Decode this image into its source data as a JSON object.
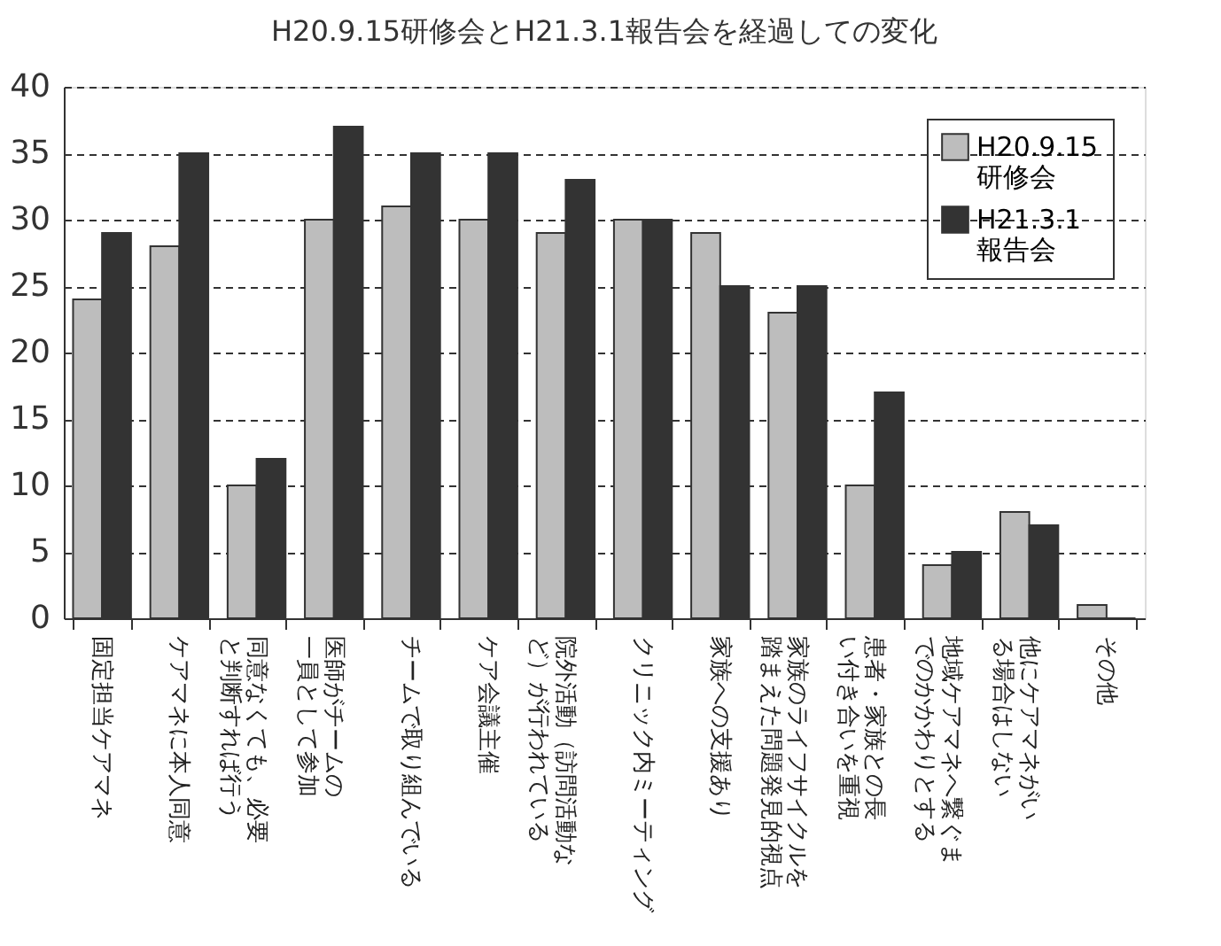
{
  "chart_data": {
    "type": "bar",
    "title": "H20.9.15研修会とH21.3.1報告会を経過しての変化",
    "categories": [
      "固定担当ケアマネ",
      "ケアマネに本人同意",
      "同意なくても、必要と判断すれば行う",
      "医師がチームの一員として参加",
      "チームで取り組んでいる",
      "ケア会議主催",
      "院外活動（訪問活動など）が行われている",
      "クリニック内ミーティング",
      "家族への支援あり",
      "家族のライフサイクルを踏まえた問題発見的視点",
      "患者・家族との長い付き合いを重視",
      "地域ケアマネへ繋ぐまでのかかわりとする",
      "他にケアマネがいる場合はしない",
      "その他"
    ],
    "series": [
      {
        "name": "H20.9.15\n研修会",
        "color": "#bdbdbd",
        "values": [
          24,
          28,
          10,
          30,
          31,
          30,
          29,
          30,
          29,
          23,
          10,
          4,
          8,
          1
        ]
      },
      {
        "name": "H21.3.1\n報告会",
        "color": "#333333",
        "values": [
          29,
          35,
          12,
          37,
          35,
          35,
          33,
          30,
          25,
          25,
          17,
          5,
          7,
          0
        ]
      }
    ],
    "ylim": [
      0,
      40
    ],
    "yticks": [
      0,
      5,
      10,
      15,
      20,
      25,
      30,
      35,
      40
    ],
    "grid": "y",
    "legend": "top right"
  }
}
